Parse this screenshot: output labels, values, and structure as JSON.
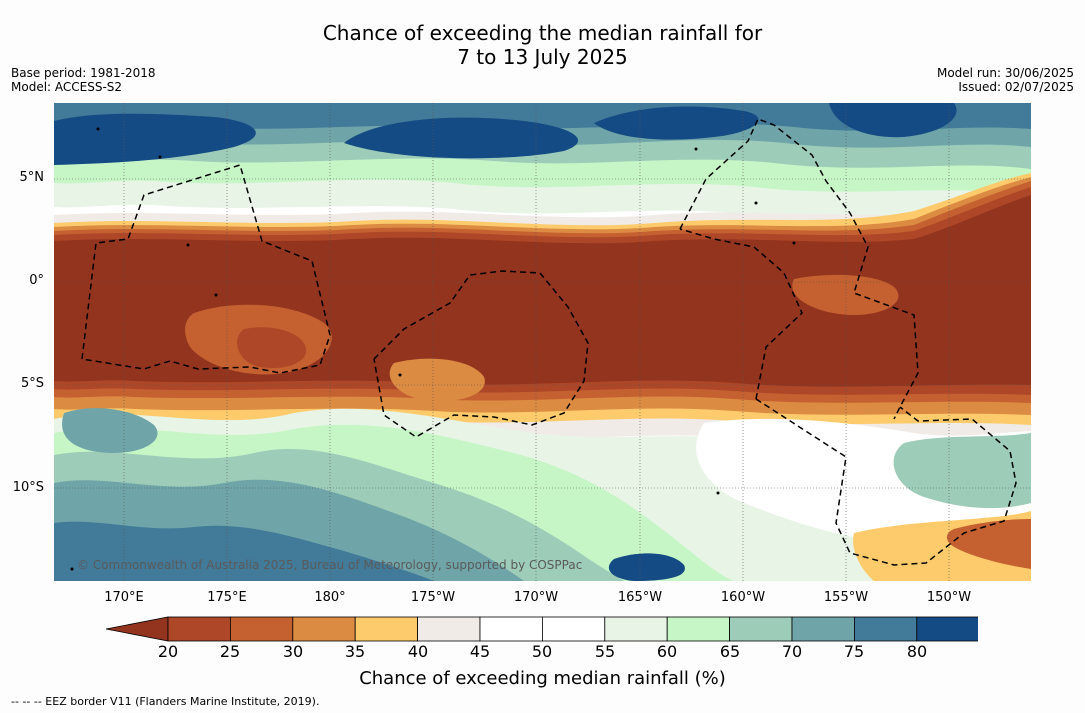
{
  "header": {
    "title_line1": "Chance of exceeding the median rainfall for",
    "title_line2": "7 to 13 July 2025",
    "base_period": "Base period: 1981-2018",
    "model": "Model: ACCESS-S2",
    "model_run": "Model run: 30/06/2025",
    "issued": "Issued: 02/07/2025"
  },
  "map": {
    "latitude_labels": [
      "5°N",
      "0°",
      "5°S",
      "10°S"
    ],
    "longitude_labels": [
      "170°E",
      "175°E",
      "180°",
      "175°W",
      "170°W",
      "165°W",
      "160°W",
      "155°W",
      "150°W"
    ],
    "copyright": "© Commonwealth of Australia 2025, Bureau of Meteorology, supported by COSPPac"
  },
  "colorbar": {
    "ticks": [
      "20",
      "25",
      "30",
      "35",
      "40",
      "45",
      "50",
      "55",
      "60",
      "65",
      "70",
      "75",
      "80"
    ],
    "colors": [
      "#93341f",
      "#ae4728",
      "#c56030",
      "#dc8b42",
      "#fdcb6b",
      "#f0ebe6",
      "#ffffff",
      "#ffffff",
      "#e8f4e6",
      "#c6f6c6",
      "#9dcdb8",
      "#6fa5a8",
      "#427a99",
      "#144b84",
      "#144b84"
    ],
    "label": "Chance of exceeding median rainfall (%)"
  },
  "footnote": "--  --  -- EEZ border V11 (Flanders Marine Institute, 2019)."
}
